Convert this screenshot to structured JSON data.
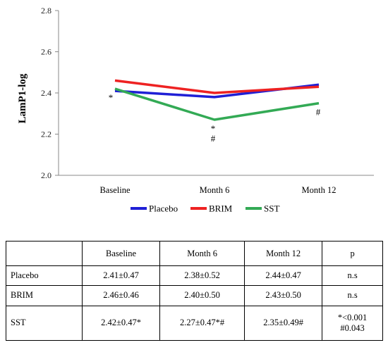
{
  "chart_data": {
    "type": "line",
    "ylabel": "LamP1-log",
    "xlabel": "",
    "ylim": [
      2.0,
      2.8
    ],
    "yticks": [
      "2.0",
      "2.2",
      "2.4",
      "2.6",
      "2.8"
    ],
    "categories": [
      "Baseline",
      "Month 6",
      "Month 12"
    ],
    "series": [
      {
        "name": "Placebo",
        "color": "#1f1fd6",
        "values": [
          2.41,
          2.38,
          2.44
        ]
      },
      {
        "name": "BRIM",
        "color": "#ee2222",
        "values": [
          2.46,
          2.4,
          2.43
        ]
      },
      {
        "name": "SST",
        "color": "#33aa55",
        "values": [
          2.42,
          2.27,
          2.35
        ]
      }
    ],
    "annotations": [
      {
        "text": "*",
        "category": "Baseline",
        "y": 2.42,
        "position": "below"
      },
      {
        "text": "*",
        "category": "Month 6",
        "y": 2.27,
        "position": "below"
      },
      {
        "text": "#",
        "category": "Month 6",
        "y": 2.27,
        "position": "below-2"
      },
      {
        "text": "#",
        "category": "Month 12",
        "y": 2.35,
        "position": "below"
      }
    ],
    "legend_position": "bottom",
    "grid": false
  },
  "table": {
    "headers": [
      "",
      "Baseline",
      "Month 6",
      "Month 12",
      "p"
    ],
    "rows": [
      {
        "label": "Placebo",
        "cells": [
          "2.41±0.47",
          "2.38±0.52",
          "2.44±0.47"
        ],
        "p1": "n.s",
        "p2": ""
      },
      {
        "label": "BRIM",
        "cells": [
          "2.46±0.46",
          "2.40±0.50",
          "2.43±0.50"
        ],
        "p1": "n.s",
        "p2": ""
      },
      {
        "label": "SST",
        "cells": [
          "2.42±0.47*",
          "2.27±0.47*#",
          "2.35±0.49#"
        ],
        "p1": "*<0.001",
        "p2": "#0.043"
      }
    ]
  }
}
